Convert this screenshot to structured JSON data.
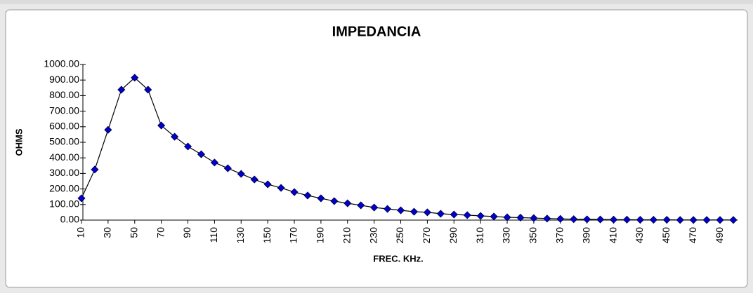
{
  "chart_data": {
    "type": "line",
    "title": "IMPEDANCIA",
    "xlabel": "FREC. KHz.",
    "ylabel": "OHMS",
    "x": [
      10,
      20,
      30,
      40,
      50,
      60,
      70,
      80,
      90,
      100,
      110,
      120,
      130,
      140,
      150,
      160,
      170,
      180,
      190,
      200,
      210,
      220,
      230,
      240,
      250,
      260,
      270,
      280,
      290,
      300,
      310,
      320,
      330,
      340,
      350,
      360,
      370,
      380,
      390,
      400,
      410,
      420,
      430,
      440,
      450,
      460,
      470,
      480,
      490,
      500
    ],
    "series": [
      {
        "name": "IMPEDANCIA",
        "color": "#0000cc",
        "line_color": "#000000",
        "values": [
          140,
          325,
          580,
          838,
          915,
          838,
          608,
          536,
          473,
          423,
          370,
          333,
          297,
          261,
          230,
          207,
          180,
          158,
          140,
          122,
          108,
          95,
          81,
          72,
          63,
          54,
          50,
          41,
          36,
          32,
          27,
          23,
          18,
          16,
          13,
          10,
          8,
          6,
          5,
          4,
          3,
          3,
          2,
          2,
          2,
          1,
          1,
          1,
          1,
          1
        ]
      }
    ],
    "xlim": [
      10,
      500
    ],
    "xticks": [
      10,
      30,
      50,
      70,
      90,
      110,
      130,
      150,
      170,
      190,
      210,
      230,
      250,
      270,
      290,
      310,
      330,
      350,
      370,
      390,
      410,
      430,
      450,
      470,
      490
    ],
    "ylim": [
      0,
      1000
    ],
    "yticks": [
      {
        "value": 0,
        "label": "0.00"
      },
      {
        "value": 100,
        "label": "100.00"
      },
      {
        "value": 200,
        "label": "200.00"
      },
      {
        "value": 300,
        "label": "300.00"
      },
      {
        "value": 400,
        "label": "400.00"
      },
      {
        "value": 500,
        "label": "500.00"
      },
      {
        "value": 600,
        "label": "600.00"
      },
      {
        "value": 700,
        "label": "700.00"
      },
      {
        "value": 800,
        "label": "800.00"
      },
      {
        "value": 900,
        "label": "900.00"
      },
      {
        "value": 1000,
        "label": "1000.00"
      }
    ],
    "grid": false
  }
}
